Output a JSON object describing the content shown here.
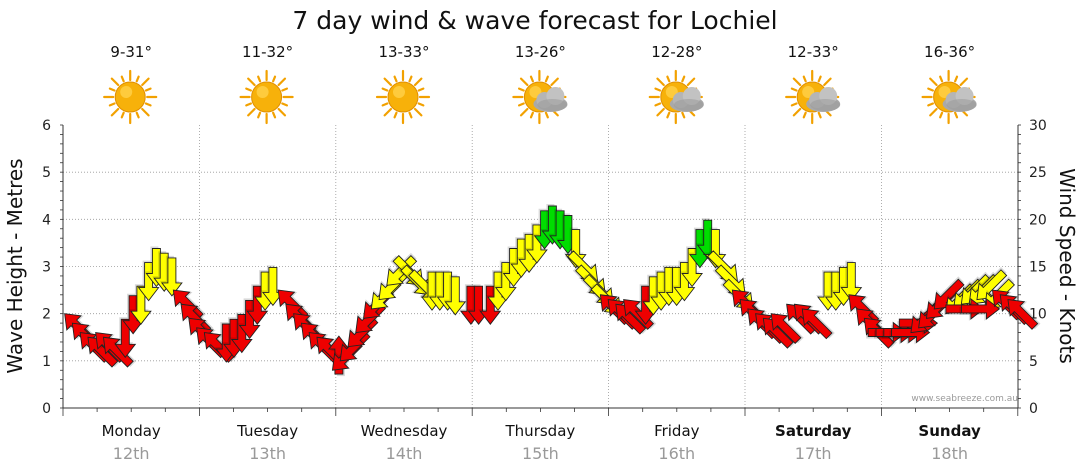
{
  "chart_data": {
    "type": "line",
    "title": "7 day wind & wave forecast for Lochiel",
    "ylabel_left": "Wave Height - Metres",
    "ylabel_right": "Wind Speed - Knots",
    "ylim_left": [
      0,
      6
    ],
    "ylim_right": [
      0,
      30
    ],
    "yticks_left": [
      "0",
      "1",
      "2",
      "3",
      "4",
      "5",
      "6"
    ],
    "yticks_right": [
      "0",
      "5",
      "10",
      "15",
      "20",
      "25",
      "30"
    ],
    "credit": "www.seabreeze.com.au",
    "days": [
      {
        "name": "Monday",
        "date": "12th",
        "temp": "9-31°",
        "weather": "sunny",
        "bold": false
      },
      {
        "name": "Tuesday",
        "date": "13th",
        "temp": "11-32°",
        "weather": "sunny",
        "bold": false
      },
      {
        "name": "Wednesday",
        "date": "14th",
        "temp": "13-33°",
        "weather": "sunny",
        "bold": false
      },
      {
        "name": "Thursday",
        "date": "15th",
        "temp": "13-26°",
        "weather": "partly-cloudy",
        "bold": false
      },
      {
        "name": "Friday",
        "date": "16th",
        "temp": "12-28°",
        "weather": "partly-cloudy",
        "bold": false
      },
      {
        "name": "Saturday",
        "date": "17th",
        "temp": "12-33°",
        "weather": "partly-cloudy",
        "bold": true
      },
      {
        "name": "Sunday",
        "date": "18th",
        "temp": "16-36°",
        "weather": "partly-cloudy",
        "bold": true
      }
    ],
    "colors": {
      "strong": "#00dd00",
      "moderate": "#ffff00",
      "light": "#ee0000",
      "outline": "#222222",
      "grid": "#999999"
    },
    "wind_series": {
      "name": "Wind speed (knots)",
      "unit": "knots",
      "points": [
        {
          "x": 0.1,
          "v": 8.5,
          "dir": "SE",
          "c": "light"
        },
        {
          "x": 0.2,
          "v": 7.5,
          "dir": "SE",
          "c": "light"
        },
        {
          "x": 0.3,
          "v": 6.5,
          "dir": "SE",
          "c": "light"
        },
        {
          "x": 0.4,
          "v": 6.0,
          "dir": "SE",
          "c": "light"
        },
        {
          "x": 0.5,
          "v": 6.5,
          "dir": "SE",
          "c": "light"
        },
        {
          "x": 0.6,
          "v": 6.0,
          "dir": "SE",
          "c": "light"
        },
        {
          "x": 0.7,
          "v": 7.5,
          "dir": "N",
          "c": "light"
        },
        {
          "x": 0.8,
          "v": 10.0,
          "dir": "N",
          "c": "light"
        },
        {
          "x": 0.9,
          "v": 11.0,
          "dir": "N",
          "c": "moderate"
        },
        {
          "x": 1.0,
          "v": 13.5,
          "dir": "N",
          "c": "moderate"
        },
        {
          "x": 1.1,
          "v": 15.0,
          "dir": "N",
          "c": "moderate"
        },
        {
          "x": 1.2,
          "v": 14.5,
          "dir": "N",
          "c": "moderate"
        },
        {
          "x": 1.3,
          "v": 14.0,
          "dir": "N",
          "c": "moderate"
        },
        {
          "x": 1.5,
          "v": 11.0,
          "dir": "SE",
          "c": "light"
        },
        {
          "x": 1.6,
          "v": 9.5,
          "dir": "SE",
          "c": "light"
        },
        {
          "x": 1.7,
          "v": 8.0,
          "dir": "SE",
          "c": "light"
        },
        {
          "x": 1.8,
          "v": 7.0,
          "dir": "SE",
          "c": "light"
        },
        {
          "x": 1.9,
          "v": 6.5,
          "dir": "SE",
          "c": "light"
        },
        {
          "x": 2.0,
          "v": 7.0,
          "dir": "N",
          "c": "light"
        },
        {
          "x": 2.1,
          "v": 7.5,
          "dir": "N",
          "c": "light"
        },
        {
          "x": 2.2,
          "v": 8.0,
          "dir": "N",
          "c": "light"
        },
        {
          "x": 2.3,
          "v": 9.5,
          "dir": "N",
          "c": "light"
        },
        {
          "x": 2.4,
          "v": 11.0,
          "dir": "N",
          "c": "light"
        },
        {
          "x": 2.5,
          "v": 12.5,
          "dir": "N",
          "c": "moderate"
        },
        {
          "x": 2.6,
          "v": 13.0,
          "dir": "N",
          "c": "moderate"
        },
        {
          "x": 2.85,
          "v": 11.0,
          "dir": "SE",
          "c": "light"
        },
        {
          "x": 2.95,
          "v": 9.5,
          "dir": "SE",
          "c": "light"
        },
        {
          "x": 3.05,
          "v": 8.5,
          "dir": "SE",
          "c": "light"
        },
        {
          "x": 3.15,
          "v": 7.5,
          "dir": "SE",
          "c": "light"
        },
        {
          "x": 3.25,
          "v": 6.5,
          "dir": "SE",
          "c": "light"
        },
        {
          "x": 3.35,
          "v": 6.0,
          "dir": "SE",
          "c": "light"
        },
        {
          "x": 3.45,
          "v": 5.5,
          "dir": "S",
          "c": "light"
        },
        {
          "x": 3.55,
          "v": 5.5,
          "dir": "NE",
          "c": "light"
        },
        {
          "x": 3.65,
          "v": 6.5,
          "dir": "NE",
          "c": "light"
        },
        {
          "x": 3.75,
          "v": 8.0,
          "dir": "NE",
          "c": "light"
        },
        {
          "x": 3.85,
          "v": 9.5,
          "dir": "NE",
          "c": "light"
        },
        {
          "x": 3.95,
          "v": 11.0,
          "dir": "NE",
          "c": "light"
        },
        {
          "x": 4.05,
          "v": 12.0,
          "dir": "NE",
          "c": "moderate"
        },
        {
          "x": 4.15,
          "v": 13.0,
          "dir": "NE",
          "c": "moderate"
        },
        {
          "x": 4.25,
          "v": 14.5,
          "dir": "NE",
          "c": "moderate"
        },
        {
          "x": 4.35,
          "v": 14.5,
          "dir": "NW",
          "c": "moderate"
        },
        {
          "x": 4.45,
          "v": 13.5,
          "dir": "NW",
          "c": "moderate"
        },
        {
          "x": 4.55,
          "v": 13.0,
          "dir": "NW",
          "c": "moderate"
        },
        {
          "x": 4.65,
          "v": 12.5,
          "dir": "N",
          "c": "moderate"
        },
        {
          "x": 4.75,
          "v": 12.5,
          "dir": "N",
          "c": "moderate"
        },
        {
          "x": 4.85,
          "v": 12.5,
          "dir": "N",
          "c": "moderate"
        },
        {
          "x": 4.95,
          "v": 12.0,
          "dir": "N",
          "c": "moderate"
        },
        {
          "x": 5.15,
          "v": 11.0,
          "dir": "N",
          "c": "light"
        },
        {
          "x": 5.25,
          "v": 11.0,
          "dir": "N",
          "c": "light"
        },
        {
          "x": 5.4,
          "v": 11.0,
          "dir": "N",
          "c": "light"
        },
        {
          "x": 5.5,
          "v": 12.5,
          "dir": "N",
          "c": "moderate"
        },
        {
          "x": 5.6,
          "v": 13.5,
          "dir": "N",
          "c": "moderate"
        },
        {
          "x": 5.7,
          "v": 15.0,
          "dir": "N",
          "c": "moderate"
        },
        {
          "x": 5.8,
          "v": 16.0,
          "dir": "N",
          "c": "moderate"
        },
        {
          "x": 5.9,
          "v": 16.5,
          "dir": "N",
          "c": "moderate"
        },
        {
          "x": 6.0,
          "v": 17.5,
          "dir": "N",
          "c": "moderate"
        },
        {
          "x": 6.1,
          "v": 19.0,
          "dir": "N",
          "c": "strong"
        },
        {
          "x": 6.2,
          "v": 19.5,
          "dir": "N",
          "c": "strong"
        },
        {
          "x": 6.3,
          "v": 19.0,
          "dir": "N",
          "c": "strong"
        },
        {
          "x": 6.4,
          "v": 18.5,
          "dir": "N",
          "c": "strong"
        },
        {
          "x": 6.5,
          "v": 17.0,
          "dir": "N",
          "c": "moderate"
        },
        {
          "x": 6.6,
          "v": 15.0,
          "dir": "NW",
          "c": "moderate"
        },
        {
          "x": 6.7,
          "v": 13.5,
          "dir": "NW",
          "c": "moderate"
        },
        {
          "x": 6.8,
          "v": 12.5,
          "dir": "NW",
          "c": "moderate"
        },
        {
          "x": 6.9,
          "v": 11.5,
          "dir": "NW",
          "c": "moderate"
        },
        {
          "x": 7.0,
          "v": 10.5,
          "dir": "SE",
          "c": "light"
        },
        {
          "x": 7.1,
          "v": 10.0,
          "dir": "SE",
          "c": "light"
        },
        {
          "x": 7.2,
          "v": 9.5,
          "dir": "SE",
          "c": "light"
        },
        {
          "x": 7.3,
          "v": 10.0,
          "dir": "SE",
          "c": "light"
        },
        {
          "x": 7.4,
          "v": 11.0,
          "dir": "N",
          "c": "light"
        },
        {
          "x": 7.5,
          "v": 12.0,
          "dir": "N",
          "c": "moderate"
        },
        {
          "x": 7.6,
          "v": 12.5,
          "dir": "N",
          "c": "moderate"
        },
        {
          "x": 7.7,
          "v": 13.0,
          "dir": "N",
          "c": "moderate"
        },
        {
          "x": 7.8,
          "v": 13.0,
          "dir": "N",
          "c": "moderate"
        },
        {
          "x": 7.9,
          "v": 13.5,
          "dir": "N",
          "c": "moderate"
        },
        {
          "x": 8.0,
          "v": 15.0,
          "dir": "N",
          "c": "moderate"
        },
        {
          "x": 8.1,
          "v": 17.0,
          "dir": "N",
          "c": "strong"
        },
        {
          "x": 8.2,
          "v": 18.0,
          "dir": "N",
          "c": "strong"
        },
        {
          "x": 8.3,
          "v": 17.0,
          "dir": "N",
          "c": "moderate"
        },
        {
          "x": 8.4,
          "v": 15.0,
          "dir": "NW",
          "c": "moderate"
        },
        {
          "x": 8.5,
          "v": 13.5,
          "dir": "NW",
          "c": "moderate"
        },
        {
          "x": 8.6,
          "v": 12.0,
          "dir": "NW",
          "c": "moderate"
        },
        {
          "x": 8.7,
          "v": 11.0,
          "dir": "SE",
          "c": "light"
        },
        {
          "x": 8.8,
          "v": 10.0,
          "dir": "SE",
          "c": "light"
        },
        {
          "x": 8.9,
          "v": 9.0,
          "dir": "SE",
          "c": "light"
        },
        {
          "x": 9.0,
          "v": 8.5,
          "dir": "SE",
          "c": "light"
        },
        {
          "x": 9.1,
          "v": 8.0,
          "dir": "SE",
          "c": "light"
        },
        {
          "x": 9.2,
          "v": 8.5,
          "dir": "SE",
          "c": "light"
        },
        {
          "x": 9.4,
          "v": 9.5,
          "dir": "SE",
          "c": "light"
        },
        {
          "x": 9.5,
          "v": 9.5,
          "dir": "SE",
          "c": "light"
        },
        {
          "x": 9.6,
          "v": 9.0,
          "dir": "SE",
          "c": "light"
        },
        {
          "x": 9.75,
          "v": 12.5,
          "dir": "N",
          "c": "moderate"
        },
        {
          "x": 9.85,
          "v": 12.5,
          "dir": "N",
          "c": "moderate"
        },
        {
          "x": 9.95,
          "v": 13.0,
          "dir": "N",
          "c": "moderate"
        },
        {
          "x": 10.05,
          "v": 13.5,
          "dir": "N",
          "c": "moderate"
        },
        {
          "x": 10.2,
          "v": 10.5,
          "dir": "SE",
          "c": "light"
        },
        {
          "x": 10.3,
          "v": 9.0,
          "dir": "SE",
          "c": "light"
        },
        {
          "x": 10.4,
          "v": 8.0,
          "dir": "SE",
          "c": "light"
        },
        {
          "x": 10.5,
          "v": 8.0,
          "dir": "W",
          "c": "light"
        },
        {
          "x": 10.6,
          "v": 8.0,
          "dir": "W",
          "c": "light"
        },
        {
          "x": 10.7,
          "v": 8.0,
          "dir": "W",
          "c": "light"
        },
        {
          "x": 10.8,
          "v": 8.0,
          "dir": "W",
          "c": "light"
        },
        {
          "x": 10.9,
          "v": 9.0,
          "dir": "W",
          "c": "light"
        },
        {
          "x": 11.0,
          "v": 9.5,
          "dir": "NE",
          "c": "light"
        },
        {
          "x": 11.1,
          "v": 10.0,
          "dir": "NE",
          "c": "light"
        },
        {
          "x": 11.2,
          "v": 11.0,
          "dir": "NE",
          "c": "light"
        },
        {
          "x": 11.3,
          "v": 12.0,
          "dir": "NE",
          "c": "light"
        },
        {
          "x": 11.45,
          "v": 11.5,
          "dir": "NE",
          "c": "moderate"
        },
        {
          "x": 11.55,
          "v": 12.0,
          "dir": "NE",
          "c": "moderate"
        },
        {
          "x": 11.65,
          "v": 12.5,
          "dir": "NE",
          "c": "moderate"
        },
        {
          "x": 11.75,
          "v": 12.5,
          "dir": "NE",
          "c": "moderate"
        },
        {
          "x": 11.85,
          "v": 13.0,
          "dir": "NE",
          "c": "moderate"
        },
        {
          "x": 11.95,
          "v": 12.0,
          "dir": "NE",
          "c": "moderate"
        },
        {
          "x": 11.5,
          "v": 10.5,
          "dir": "W",
          "c": "light"
        },
        {
          "x": 11.7,
          "v": 10.5,
          "dir": "W",
          "c": "light"
        },
        {
          "x": 12.05,
          "v": 11.0,
          "dir": "SE",
          "c": "light"
        },
        {
          "x": 12.15,
          "v": 10.5,
          "dir": "SE",
          "c": "light"
        },
        {
          "x": 12.25,
          "v": 10.0,
          "dir": "SE",
          "c": "light"
        }
      ]
    }
  }
}
